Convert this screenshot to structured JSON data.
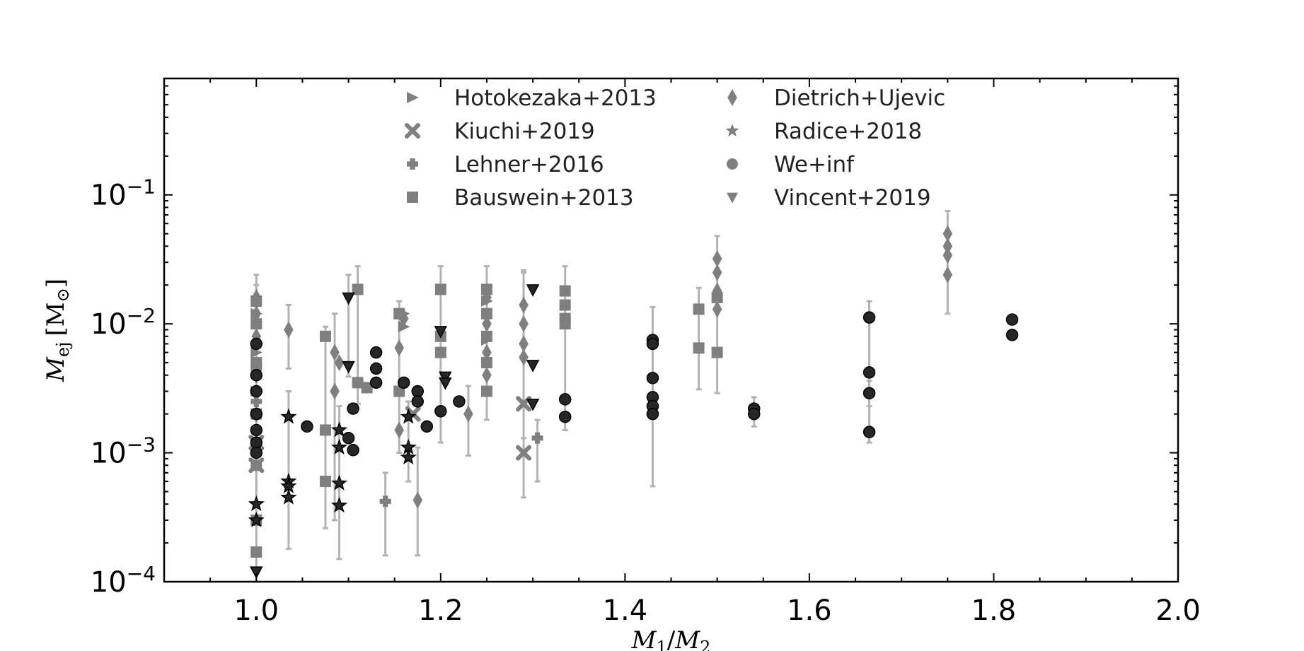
{
  "chart_data": {
    "type": "scatter",
    "title": "",
    "xlabel": "M1/M2",
    "xlabel_parts": {
      "base": "M",
      "sub1": "1",
      "sep": "/",
      "base2": "M",
      "sub2": "2"
    },
    "ylabel": "Mej [M⊙]",
    "ylabel_parts": {
      "base": "M",
      "sub": "ej",
      "unit": "[M",
      "unit_sub": "⊙",
      "unit_close": "]"
    },
    "xlim": [
      0.9,
      2.0
    ],
    "ylim": [
      0.0001,
      0.8
    ],
    "yscale": "log",
    "xticks": [
      1.0,
      1.2,
      1.4,
      1.6,
      1.8,
      2.0
    ],
    "xtick_labels": [
      "1.0",
      "1.2",
      "1.4",
      "1.6",
      "1.8",
      "2.0"
    ],
    "yticks": [
      0.0001,
      0.001,
      0.01,
      0.1
    ],
    "ytick_labels": [
      {
        "base": "10",
        "exp": "−4"
      },
      {
        "base": "10",
        "exp": "−3"
      },
      {
        "base": "10",
        "exp": "−2"
      },
      {
        "base": "10",
        "exp": "−1"
      }
    ],
    "grid": false,
    "legend_position": "top-center",
    "legend_columns": 2,
    "colors": {
      "marker_gray": "#7f7f7f",
      "marker_dark": "#262626",
      "errorbar": "#b3b3b3",
      "axis": "#000000"
    },
    "series": [
      {
        "name": "Hotokezaka+2013",
        "marker": "triangle-right",
        "color": "#7f7f7f",
        "points": [
          [
            1.0,
            0.012
          ],
          [
            1.0,
            0.006
          ],
          [
            1.0,
            0.003
          ],
          [
            1.16,
            0.012
          ],
          [
            1.16,
            0.0095
          ],
          [
            1.25,
            0.015
          ],
          [
            1.25,
            0.0075
          ]
        ]
      },
      {
        "name": "Kiuchi+2019",
        "marker": "x",
        "color": "#7f7f7f",
        "points": [
          [
            1.0,
            0.0008
          ],
          [
            1.0,
            0.0012
          ],
          [
            1.29,
            0.001
          ],
          [
            1.29,
            0.0024
          ],
          [
            1.17,
            0.002
          ]
        ]
      },
      {
        "name": "Lehner+2016",
        "marker": "plus",
        "color": "#7f7f7f",
        "points": [
          [
            1.0,
            0.0045
          ],
          [
            1.0,
            0.0025
          ],
          [
            1.14,
            0.00042
          ],
          [
            1.305,
            0.0013
          ],
          [
            1.11,
            0.0035
          ]
        ]
      },
      {
        "name": "Bauswein+2013",
        "marker": "square",
        "color": "#7f7f7f",
        "points": [
          [
            1.0,
            0.00017
          ],
          [
            1.0,
            0.0003
          ],
          [
            1.0,
            0.0008
          ],
          [
            1.0,
            0.002
          ],
          [
            1.0,
            0.005
          ],
          [
            1.0,
            0.01
          ],
          [
            1.0,
            0.015
          ],
          [
            1.075,
            0.0006
          ],
          [
            1.075,
            0.0015
          ],
          [
            1.075,
            0.008
          ],
          [
            1.11,
            0.0185
          ],
          [
            1.11,
            0.0035
          ],
          [
            1.12,
            0.0032
          ],
          [
            1.155,
            0.012
          ],
          [
            1.155,
            0.003
          ],
          [
            1.2,
            0.0185
          ],
          [
            1.2,
            0.008
          ],
          [
            1.2,
            0.006
          ],
          [
            1.25,
            0.0185
          ],
          [
            1.25,
            0.012
          ],
          [
            1.25,
            0.008
          ],
          [
            1.25,
            0.005
          ],
          [
            1.25,
            0.003
          ],
          [
            1.335,
            0.018
          ],
          [
            1.335,
            0.014
          ],
          [
            1.335,
            0.011
          ],
          [
            1.335,
            0.01
          ],
          [
            1.48,
            0.013
          ],
          [
            1.48,
            0.0065
          ],
          [
            1.5,
            0.016
          ],
          [
            1.5,
            0.006
          ]
        ]
      },
      {
        "name": "Dietrich+Ujevic",
        "marker": "diamond",
        "color": "#7f7f7f",
        "points": [
          [
            1.0,
            0.016
          ],
          [
            1.0,
            0.012
          ],
          [
            1.0,
            0.008
          ],
          [
            1.0,
            0.004
          ],
          [
            1.0,
            0.002
          ],
          [
            1.035,
            0.009
          ],
          [
            1.085,
            0.003
          ],
          [
            1.085,
            0.006
          ],
          [
            1.09,
            0.005
          ],
          [
            1.155,
            0.0065
          ],
          [
            1.155,
            0.0015
          ],
          [
            1.16,
            0.011
          ],
          [
            1.175,
            0.00043
          ],
          [
            1.23,
            0.002
          ],
          [
            1.25,
            0.016
          ],
          [
            1.25,
            0.01
          ],
          [
            1.25,
            0.006
          ],
          [
            1.25,
            0.004
          ],
          [
            1.29,
            0.014
          ],
          [
            1.29,
            0.01
          ],
          [
            1.29,
            0.007
          ],
          [
            1.29,
            0.0055
          ],
          [
            1.5,
            0.032
          ],
          [
            1.5,
            0.025
          ],
          [
            1.5,
            0.018
          ],
          [
            1.5,
            0.013
          ],
          [
            1.75,
            0.05
          ],
          [
            1.75,
            0.04
          ],
          [
            1.75,
            0.034
          ],
          [
            1.75,
            0.024
          ]
        ]
      },
      {
        "name": "Radice+2018",
        "marker": "star",
        "color": "#262626",
        "points": [
          [
            1.0,
            0.0004
          ],
          [
            1.0,
            0.0003
          ],
          [
            1.035,
            0.0019
          ],
          [
            1.035,
            0.0006
          ],
          [
            1.035,
            0.00055
          ],
          [
            1.035,
            0.00045
          ],
          [
            1.09,
            0.0015
          ],
          [
            1.09,
            0.0011
          ],
          [
            1.09,
            0.00058
          ],
          [
            1.09,
            0.00039
          ],
          [
            1.165,
            0.0011
          ],
          [
            1.165,
            0.00092
          ],
          [
            1.165,
            0.0019
          ]
        ]
      },
      {
        "name": "We+inf",
        "marker": "circle",
        "color": "#262626",
        "points": [
          [
            1.0,
            0.007
          ],
          [
            1.0,
            0.004
          ],
          [
            1.0,
            0.003
          ],
          [
            1.0,
            0.002
          ],
          [
            1.0,
            0.0015
          ],
          [
            1.0,
            0.0012
          ],
          [
            1.0,
            0.001
          ],
          [
            1.055,
            0.0016
          ],
          [
            1.1,
            0.0013
          ],
          [
            1.105,
            0.00105
          ],
          [
            1.105,
            0.0022
          ],
          [
            1.13,
            0.006
          ],
          [
            1.13,
            0.0045
          ],
          [
            1.13,
            0.0035
          ],
          [
            1.16,
            0.0035
          ],
          [
            1.175,
            0.003
          ],
          [
            1.175,
            0.0025
          ],
          [
            1.185,
            0.0016
          ],
          [
            1.2,
            0.0021
          ],
          [
            1.22,
            0.0025
          ],
          [
            1.335,
            0.0026
          ],
          [
            1.335,
            0.0019
          ],
          [
            1.43,
            0.0075
          ],
          [
            1.43,
            0.007
          ],
          [
            1.43,
            0.0038
          ],
          [
            1.43,
            0.0027
          ],
          [
            1.43,
            0.0023
          ],
          [
            1.43,
            0.002
          ],
          [
            1.54,
            0.0022
          ],
          [
            1.54,
            0.002
          ],
          [
            1.665,
            0.0112
          ],
          [
            1.665,
            0.0042
          ],
          [
            1.665,
            0.0029
          ],
          [
            1.665,
            0.00145
          ],
          [
            1.82,
            0.0108
          ],
          [
            1.82,
            0.0082
          ]
        ]
      },
      {
        "name": "Vincent+2019",
        "marker": "triangle-down",
        "color": "#262626",
        "points": [
          [
            1.0,
            0.00012
          ],
          [
            1.1,
            0.016
          ],
          [
            1.1,
            0.0047
          ],
          [
            1.2,
            0.0088
          ],
          [
            1.205,
            0.0039
          ],
          [
            1.205,
            0.0035
          ],
          [
            1.3,
            0.0185
          ],
          [
            1.3,
            0.0048
          ],
          [
            1.3,
            0.0024
          ]
        ]
      }
    ],
    "errorbars": [
      [
        1.0,
        0.0003,
        0.024
      ],
      [
        1.0,
        0.0001,
        0.02
      ],
      [
        1.035,
        0.0045,
        0.014
      ],
      [
        1.035,
        0.00018,
        0.003
      ],
      [
        1.075,
        0.00026,
        0.0095
      ],
      [
        1.085,
        0.0003,
        0.012
      ],
      [
        1.09,
        0.00015,
        0.0023
      ],
      [
        1.1,
        0.0039,
        0.024
      ],
      [
        1.11,
        0.0024,
        0.028
      ],
      [
        1.14,
        0.00016,
        0.0007
      ],
      [
        1.155,
        0.001,
        0.015
      ],
      [
        1.165,
        0.0006,
        0.0025
      ],
      [
        1.175,
        0.00016,
        0.0011
      ],
      [
        1.2,
        0.0012,
        0.028
      ],
      [
        1.23,
        0.00095,
        0.0033
      ],
      [
        1.25,
        0.0018,
        0.028
      ],
      [
        1.29,
        0.00045,
        0.026
      ],
      [
        1.29,
        0.0013,
        0.025
      ],
      [
        1.305,
        0.0006,
        0.0018
      ],
      [
        1.335,
        0.0015,
        0.028
      ],
      [
        1.43,
        0.00055,
        0.0135
      ],
      [
        1.48,
        0.0031,
        0.019
      ],
      [
        1.5,
        0.0029,
        0.048
      ],
      [
        1.54,
        0.0016,
        0.0027
      ],
      [
        1.665,
        0.0012,
        0.015
      ],
      [
        1.665,
        0.0023,
        0.0036
      ],
      [
        1.75,
        0.012,
        0.075
      ]
    ]
  }
}
